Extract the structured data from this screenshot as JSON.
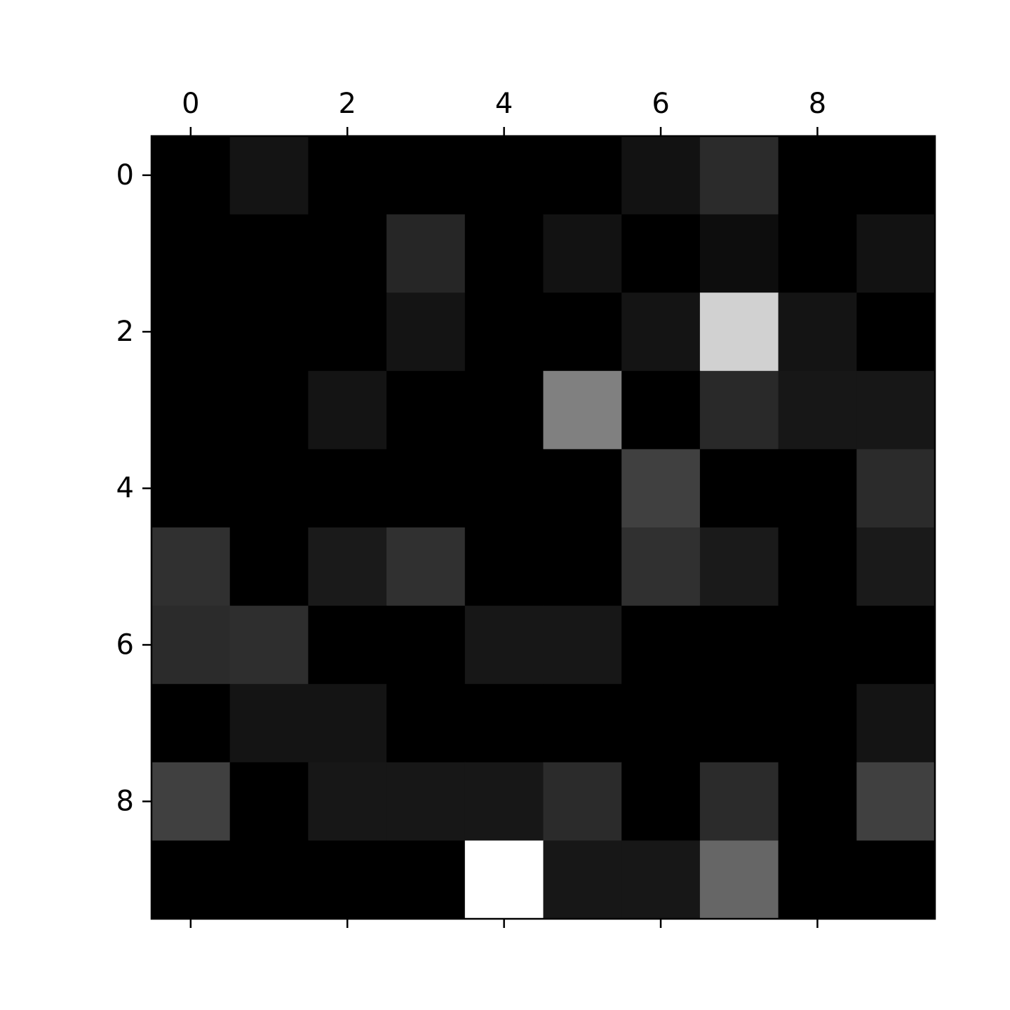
{
  "chart_data": {
    "type": "heatmap",
    "colormap": "gray",
    "value_range": [
      0,
      1
    ],
    "rows": 10,
    "cols": 10,
    "x_ticks": [
      0,
      2,
      4,
      6,
      8
    ],
    "y_ticks": [
      0,
      2,
      4,
      6,
      8
    ],
    "x_tick_labels": [
      "0",
      "2",
      "4",
      "6",
      "8"
    ],
    "y_tick_labels": [
      "0",
      "2",
      "4",
      "6",
      "8"
    ],
    "x_axis_position": "top",
    "grid": false,
    "values": [
      [
        0.0,
        0.08,
        0.0,
        0.0,
        0.0,
        0.0,
        0.07,
        0.17,
        0.0,
        0.0
      ],
      [
        0.0,
        0.0,
        0.0,
        0.15,
        0.0,
        0.07,
        0.0,
        0.05,
        0.0,
        0.07
      ],
      [
        0.0,
        0.0,
        0.0,
        0.08,
        0.0,
        0.0,
        0.08,
        0.82,
        0.08,
        0.0
      ],
      [
        0.0,
        0.0,
        0.08,
        0.0,
        0.0,
        0.5,
        0.0,
        0.16,
        0.09,
        0.09
      ],
      [
        0.0,
        0.0,
        0.0,
        0.0,
        0.0,
        0.0,
        0.25,
        0.0,
        0.0,
        0.17
      ],
      [
        0.19,
        0.0,
        0.1,
        0.19,
        0.0,
        0.0,
        0.19,
        0.1,
        0.0,
        0.1
      ],
      [
        0.17,
        0.18,
        0.0,
        0.0,
        0.09,
        0.09,
        0.0,
        0.0,
        0.0,
        0.0
      ],
      [
        0.0,
        0.08,
        0.08,
        0.0,
        0.0,
        0.0,
        0.0,
        0.0,
        0.0,
        0.08
      ],
      [
        0.25,
        0.0,
        0.09,
        0.09,
        0.09,
        0.17,
        0.0,
        0.17,
        0.0,
        0.25
      ],
      [
        0.0,
        0.0,
        0.0,
        0.0,
        1.0,
        0.09,
        0.09,
        0.4,
        0.0,
        0.0
      ]
    ]
  }
}
